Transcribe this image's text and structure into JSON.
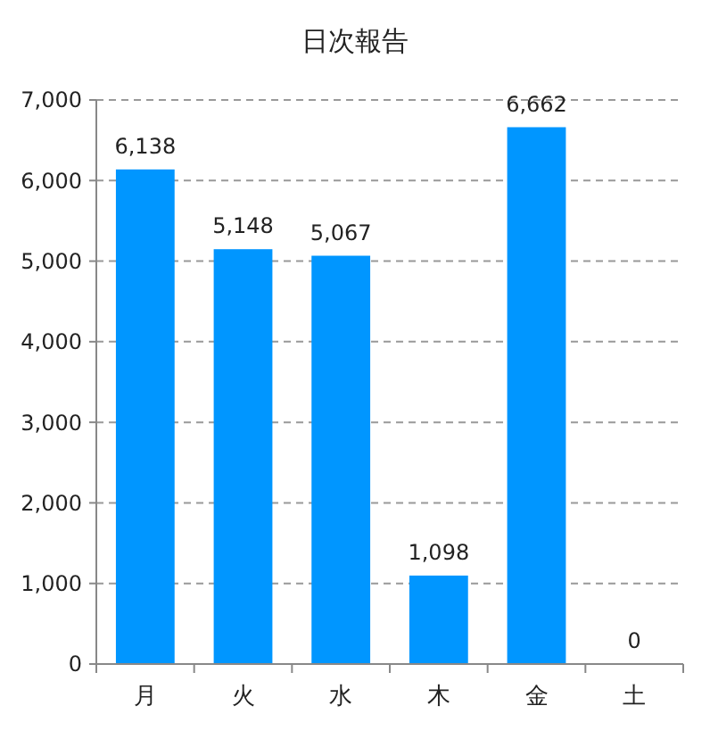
{
  "chart_data": {
    "type": "bar",
    "title": "日次報告",
    "categories": [
      "月",
      "火",
      "水",
      "木",
      "金",
      "土"
    ],
    "values": [
      6138,
      5148,
      5067,
      1098,
      6662,
      0
    ],
    "color": "#0096ff",
    "ylim": [
      0,
      7000
    ],
    "yticks": [
      {
        "value": 0,
        "label": "0"
      },
      {
        "value": 1000,
        "label": "1,000"
      },
      {
        "value": 2000,
        "label": "2,000"
      },
      {
        "value": 3000,
        "label": "3,000"
      },
      {
        "value": 4000,
        "label": "4,000"
      },
      {
        "value": 5000,
        "label": "5,000"
      },
      {
        "value": 6000,
        "label": "6,000"
      },
      {
        "value": 7000,
        "label": "7,000"
      }
    ],
    "grid": "y",
    "value_labels": [
      "6,138",
      "5,148",
      "5,067",
      "1,098",
      "6,662",
      "0"
    ]
  }
}
